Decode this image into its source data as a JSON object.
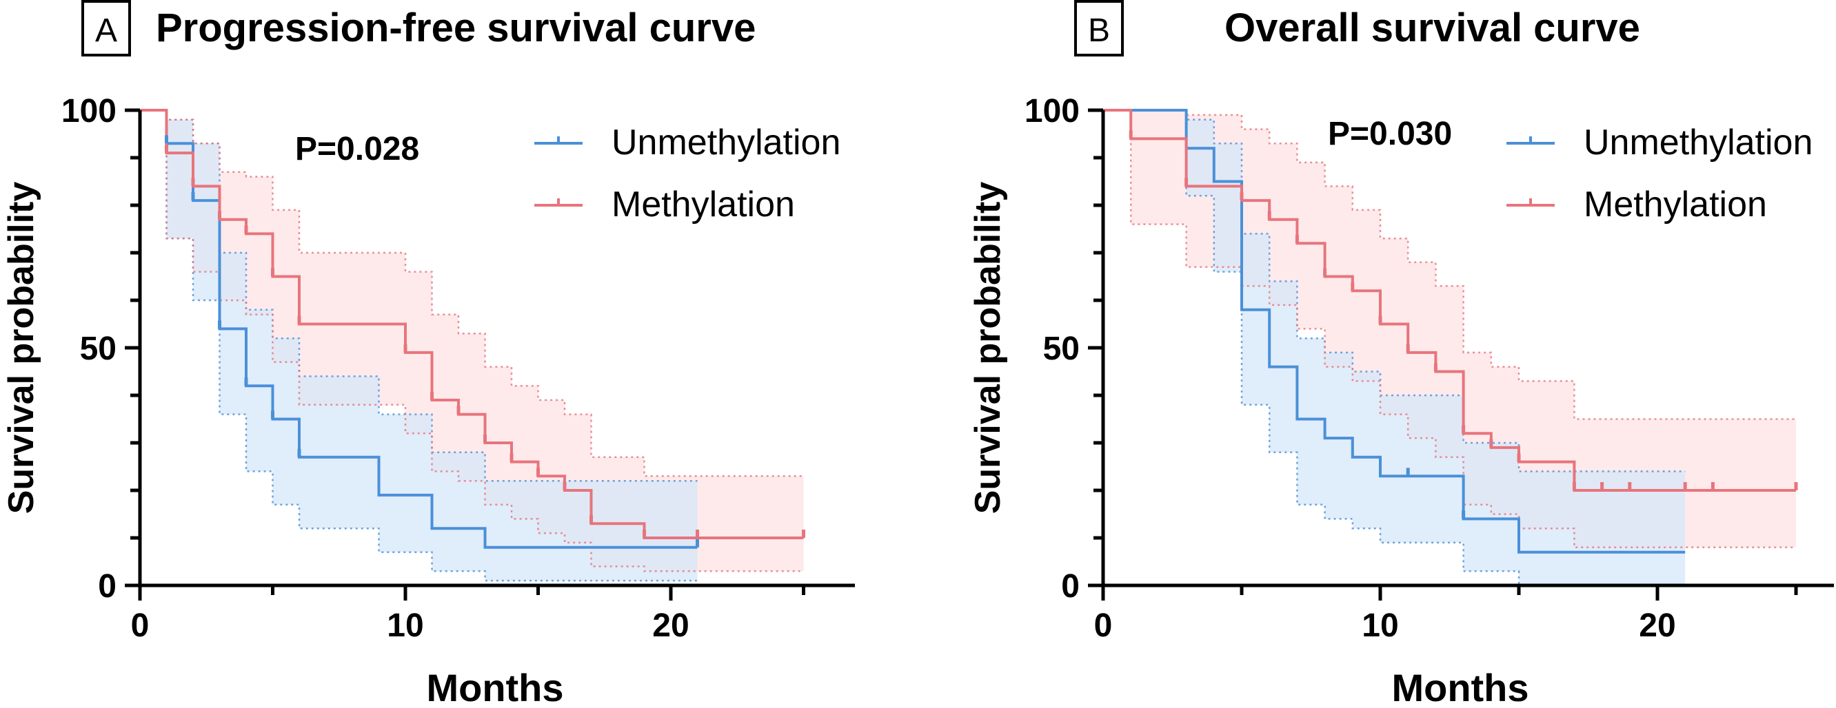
{
  "figure": {
    "background": "#ffffff"
  },
  "chart_data": [
    {
      "type": "line",
      "subtype": "kaplan-meier",
      "panel_letter": "A",
      "title": "Progression-free survival curve",
      "xlabel": "Months",
      "ylabel": "Survival probability",
      "xlim": [
        0,
        27
      ],
      "ylim": [
        0,
        100
      ],
      "xticks": [
        0,
        10,
        20
      ],
      "yticks": [
        0,
        50,
        100
      ],
      "p_value": "P=0.028",
      "legend_position": "top-right",
      "series": [
        {
          "name": "Unmethylation",
          "color": "#4a90d9",
          "fill": "#d6e7f8",
          "steps": [
            [
              0,
              100
            ],
            [
              1,
              93
            ],
            [
              2,
              81
            ],
            [
              3,
              54
            ],
            [
              4,
              42
            ],
            [
              5,
              35
            ],
            [
              6,
              27
            ],
            [
              9,
              19
            ],
            [
              11,
              12
            ],
            [
              13,
              8
            ],
            [
              21,
              8
            ]
          ],
          "upper": [
            [
              0,
              100
            ],
            [
              1,
              98
            ],
            [
              2,
              93
            ],
            [
              3,
              70
            ],
            [
              4,
              58
            ],
            [
              5,
              52
            ],
            [
              6,
              44
            ],
            [
              9,
              36
            ],
            [
              11,
              28
            ],
            [
              13,
              22
            ],
            [
              21,
              22
            ]
          ],
          "lower": [
            [
              0,
              100
            ],
            [
              1,
              73
            ],
            [
              2,
              60
            ],
            [
              3,
              36
            ],
            [
              4,
              24
            ],
            [
              5,
              17
            ],
            [
              6,
              12
            ],
            [
              9,
              7
            ],
            [
              11,
              3
            ],
            [
              13,
              1
            ],
            [
              21,
              1
            ]
          ],
          "censor_times": [
            1,
            2,
            3,
            4,
            5,
            6,
            21
          ]
        },
        {
          "name": "Methylation",
          "color": "#e8747c",
          "fill": "#fde3e4",
          "steps": [
            [
              0,
              100
            ],
            [
              1,
              91
            ],
            [
              2,
              84
            ],
            [
              3,
              77
            ],
            [
              4,
              74
            ],
            [
              5,
              65
            ],
            [
              6,
              55
            ],
            [
              10,
              49
            ],
            [
              11,
              39
            ],
            [
              12,
              36
            ],
            [
              13,
              30
            ],
            [
              14,
              26
            ],
            [
              15,
              23
            ],
            [
              16,
              20
            ],
            [
              17,
              13
            ],
            [
              19,
              10
            ],
            [
              25,
              10
            ]
          ],
          "upper": [
            [
              0,
              100
            ],
            [
              1,
              98
            ],
            [
              2,
              93
            ],
            [
              3,
              87
            ],
            [
              4,
              86
            ],
            [
              5,
              79
            ],
            [
              6,
              70
            ],
            [
              10,
              66
            ],
            [
              11,
              57
            ],
            [
              12,
              53
            ],
            [
              13,
              46
            ],
            [
              14,
              42
            ],
            [
              15,
              39
            ],
            [
              16,
              36
            ],
            [
              17,
              27
            ],
            [
              19,
              23
            ],
            [
              25,
              23
            ]
          ],
          "lower": [
            [
              0,
              100
            ],
            [
              1,
              73
            ],
            [
              2,
              66
            ],
            [
              3,
              60
            ],
            [
              4,
              57
            ],
            [
              5,
              47
            ],
            [
              6,
              38
            ],
            [
              10,
              32
            ],
            [
              11,
              24
            ],
            [
              12,
              22
            ],
            [
              13,
              17
            ],
            [
              14,
              14
            ],
            [
              15,
              11
            ],
            [
              16,
              9
            ],
            [
              17,
              4
            ],
            [
              19,
              3
            ],
            [
              25,
              3
            ]
          ],
          "censor_times": [
            1,
            2,
            3,
            4,
            5,
            6,
            10,
            11,
            12,
            13,
            14,
            15,
            16,
            17,
            19,
            21,
            25
          ]
        }
      ]
    },
    {
      "type": "line",
      "subtype": "kaplan-meier",
      "panel_letter": "B",
      "title": "Overall survival curve",
      "xlabel": "Months",
      "ylabel": "Survival probability",
      "xlim": [
        0,
        26
      ],
      "ylim": [
        0,
        100
      ],
      "xticks": [
        0,
        10,
        20
      ],
      "yticks": [
        0,
        50,
        100
      ],
      "p_value": "P=0.030",
      "legend_position": "top-right",
      "series": [
        {
          "name": "Unmethylation",
          "color": "#4a90d9",
          "fill": "#d6e7f8",
          "steps": [
            [
              0,
              100
            ],
            [
              3,
              92
            ],
            [
              4,
              85
            ],
            [
              5,
              58
            ],
            [
              6,
              46
            ],
            [
              7,
              35
            ],
            [
              8,
              31
            ],
            [
              9,
              27
            ],
            [
              10,
              23
            ],
            [
              13,
              14
            ],
            [
              15,
              7
            ],
            [
              21,
              7
            ]
          ],
          "upper": [
            [
              0,
              100
            ],
            [
              3,
              98
            ],
            [
              4,
              93
            ],
            [
              5,
              74
            ],
            [
              6,
              64
            ],
            [
              7,
              52
            ],
            [
              8,
              49
            ],
            [
              9,
              45
            ],
            [
              10,
              40
            ],
            [
              13,
              30
            ],
            [
              15,
              24
            ],
            [
              21,
              24
            ]
          ],
          "lower": [
            [
              0,
              100
            ],
            [
              3,
              82
            ],
            [
              4,
              66
            ],
            [
              5,
              38
            ],
            [
              6,
              28
            ],
            [
              7,
              17
            ],
            [
              8,
              14
            ],
            [
              9,
              12
            ],
            [
              10,
              9
            ],
            [
              13,
              3
            ],
            [
              15,
              0
            ],
            [
              21,
              0
            ]
          ],
          "censor_times": [
            11,
            13
          ]
        },
        {
          "name": "Methylation",
          "color": "#e8747c",
          "fill": "#fde3e4",
          "steps": [
            [
              0,
              100
            ],
            [
              1,
              94
            ],
            [
              3,
              84
            ],
            [
              5,
              81
            ],
            [
              6,
              77
            ],
            [
              7,
              72
            ],
            [
              8,
              65
            ],
            [
              9,
              62
            ],
            [
              10,
              55
            ],
            [
              11,
              49
            ],
            [
              12,
              45
            ],
            [
              13,
              32
            ],
            [
              14,
              29
            ],
            [
              15,
              26
            ],
            [
              17,
              20
            ],
            [
              25,
              20
            ]
          ],
          "upper": [
            [
              0,
              100
            ],
            [
              1,
              100
            ],
            [
              3,
              99
            ],
            [
              5,
              96
            ],
            [
              6,
              93
            ],
            [
              7,
              89
            ],
            [
              8,
              84
            ],
            [
              9,
              79
            ],
            [
              10,
              73
            ],
            [
              11,
              68
            ],
            [
              12,
              63
            ],
            [
              13,
              49
            ],
            [
              14,
              46
            ],
            [
              15,
              43
            ],
            [
              17,
              35
            ],
            [
              25,
              35
            ]
          ],
          "lower": [
            [
              0,
              100
            ],
            [
              1,
              76
            ],
            [
              3,
              67
            ],
            [
              5,
              63
            ],
            [
              6,
              59
            ],
            [
              7,
              54
            ],
            [
              8,
              46
            ],
            [
              9,
              43
            ],
            [
              10,
              36
            ],
            [
              11,
              31
            ],
            [
              12,
              27
            ],
            [
              13,
              17
            ],
            [
              14,
              15
            ],
            [
              15,
              12
            ],
            [
              17,
              8
            ],
            [
              25,
              8
            ]
          ],
          "censor_times": [
            1,
            3,
            5,
            6,
            7,
            8,
            9,
            10,
            11,
            12,
            13,
            14,
            15,
            17,
            18,
            19,
            21,
            22,
            25
          ]
        }
      ]
    }
  ]
}
